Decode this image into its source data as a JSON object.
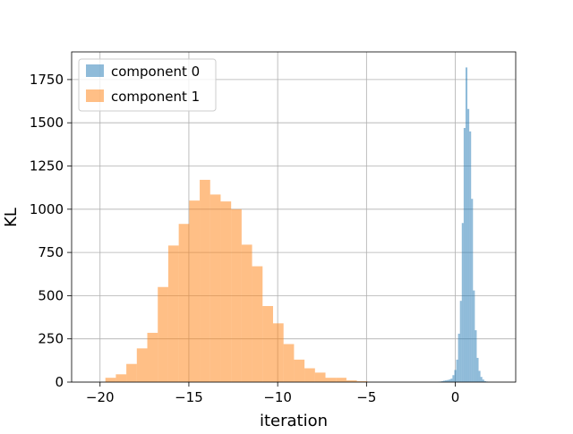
{
  "chart_data": {
    "type": "bar",
    "title": "",
    "xlabel": "iteration",
    "ylabel": "KL",
    "xlim": [
      -21.6,
      3.4
    ],
    "ylim": [
      0,
      1910
    ],
    "grid": true,
    "legend_position": "top-left",
    "x_ticks": [
      -20,
      -15,
      -10,
      -5,
      0
    ],
    "x_tick_labels": [
      "−20",
      "−15",
      "−10",
      "−5",
      "0"
    ],
    "y_ticks": [
      0,
      250,
      500,
      750,
      1000,
      1250,
      1500,
      1750
    ],
    "y_tick_labels": [
      "0",
      "250",
      "500",
      "750",
      "1000",
      "1250",
      "1500",
      "1750"
    ],
    "series": [
      {
        "name": "component 0",
        "color": "#1f77b4",
        "alpha": 0.5,
        "bin_width": 0.105,
        "bin_starts": [
          -1.0,
          -0.895,
          -0.79,
          -0.685,
          -0.58,
          -0.475,
          -0.37,
          -0.265,
          -0.16,
          -0.055,
          0.05,
          0.155,
          0.26,
          0.365,
          0.47,
          0.575,
          0.68,
          0.785,
          0.89,
          0.995,
          1.1,
          1.205,
          1.31,
          1.415,
          1.52,
          1.625,
          1.73
        ],
        "counts": [
          2,
          3,
          5,
          8,
          10,
          12,
          15,
          20,
          40,
          70,
          130,
          280,
          470,
          920,
          1470,
          1820,
          1580,
          1450,
          1060,
          530,
          300,
          140,
          65,
          30,
          15,
          6,
          3
        ]
      },
      {
        "name": "component 1",
        "color": "#ff7f0e",
        "alpha": 0.5,
        "bin_width": 0.59,
        "bin_starts": [
          -19.7,
          -19.11,
          -18.52,
          -17.93,
          -17.34,
          -16.75,
          -16.16,
          -15.57,
          -14.98,
          -14.39,
          -13.8,
          -13.21,
          -12.62,
          -12.03,
          -11.44,
          -10.85,
          -10.26,
          -9.67,
          -9.08,
          -8.49,
          -7.9,
          -7.31,
          -6.72,
          -6.13,
          -5.54
        ],
        "counts": [
          25,
          45,
          105,
          195,
          285,
          550,
          790,
          915,
          1050,
          1170,
          1085,
          1045,
          1000,
          795,
          670,
          440,
          340,
          220,
          130,
          80,
          55,
          25,
          25,
          10,
          5
        ]
      }
    ]
  }
}
